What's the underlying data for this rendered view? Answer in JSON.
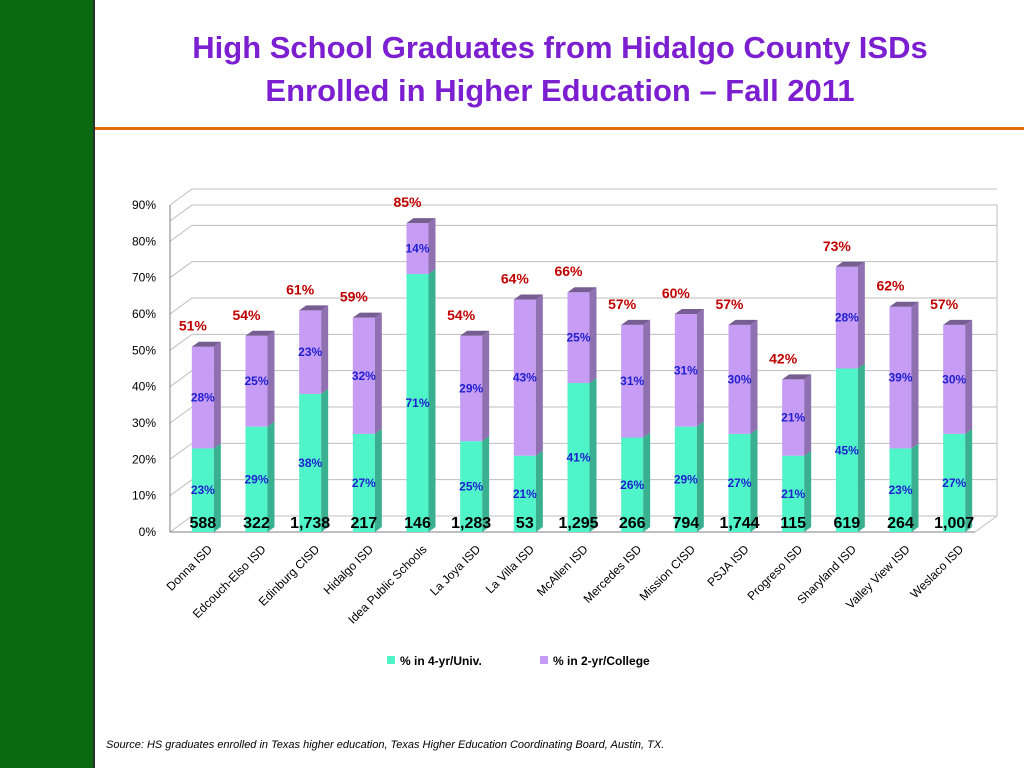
{
  "title_line1": "High School Graduates from Hidalgo County ISDs",
  "title_line2": "Enrolled in Higher Education – Fall 2011",
  "source": "Source: HS graduates enrolled in Texas higher education, Texas Higher Education Coordinating Board, Austin, TX.",
  "colors": {
    "sidebar": "#0b6a10",
    "title": "#7b1fd0",
    "rule": "#e36c0a",
    "four_year": "#4ff5c8",
    "two_year": "#c79cf4",
    "total_label": "#c00000",
    "segment_label": "#1f1fd0"
  },
  "chart_data": {
    "type": "bar",
    "stacked": true,
    "categories": [
      "Donna ISD",
      "Edcouch-Elso ISD",
      "Edinburg CISD",
      "Hidalgo ISD",
      "Idea Public Schools",
      "La Joya ISD",
      "La Villa ISD",
      "McAllen ISD",
      "Mercedes ISD",
      "Mission CISD",
      "PSJA ISD",
      "Progreso ISD",
      "Sharyland ISD",
      "Valley View ISD",
      "Weslaco ISD"
    ],
    "series": [
      {
        "name": "% in 4-yr/Univ.",
        "values": [
          23,
          29,
          38,
          27,
          71,
          25,
          21,
          41,
          26,
          29,
          27,
          21,
          45,
          23,
          27
        ],
        "labels": [
          "23%",
          "29%",
          "38%",
          "27%",
          "71%",
          "25%",
          "21%",
          "41%",
          "26%",
          "29%",
          "27%",
          "21%",
          "45%",
          "23%",
          "27%"
        ]
      },
      {
        "name": "% in 2-yr/College",
        "values": [
          28,
          25,
          23,
          32,
          14,
          29,
          43,
          25,
          31,
          31,
          30,
          21,
          28,
          39,
          30
        ],
        "labels": [
          "28%",
          "25%",
          "23%",
          "32%",
          "14%",
          "29%",
          "43%",
          "25%",
          "31%",
          "31%",
          "30%",
          "21%",
          "28%",
          "39%",
          "30%"
        ]
      }
    ],
    "totals": [
      51,
      54,
      61,
      59,
      85,
      54,
      64,
      66,
      57,
      60,
      57,
      42,
      73,
      62,
      57
    ],
    "total_labels": [
      "51%",
      "54%",
      "61%",
      "59%",
      "85%",
      "54%",
      "64%",
      "66%",
      "57%",
      "60%",
      "57%",
      "42%",
      "73%",
      "62%",
      "57%"
    ],
    "graduates": [
      "588",
      "322",
      "1,738",
      "217",
      "146",
      "1,283",
      "53",
      "1,295",
      "266",
      "794",
      "1,744",
      "115",
      "619",
      "264",
      "1,007"
    ],
    "y_ticks": [
      "0%",
      "10%",
      "20%",
      "30%",
      "40%",
      "50%",
      "60%",
      "70%",
      "80%",
      "90%"
    ],
    "ylim": [
      0,
      90
    ],
    "grid": true,
    "legend": "bottom"
  }
}
